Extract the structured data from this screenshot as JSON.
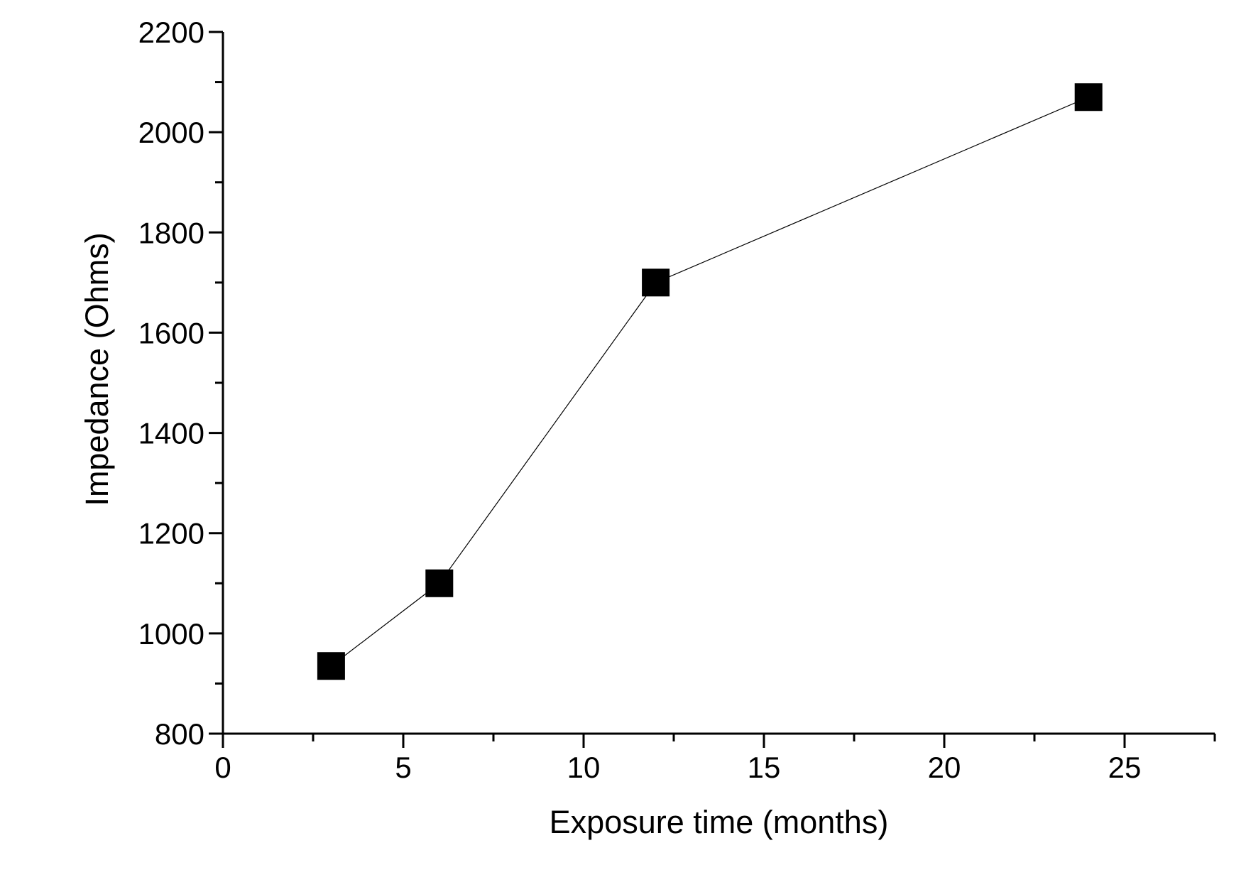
{
  "page": {
    "background": "#ffffff",
    "foreground": "#000000"
  },
  "chart_data": {
    "type": "line",
    "title": "",
    "xlabel": "Exposure time (months)",
    "ylabel": "Impedance (Ohms)",
    "series": [
      {
        "name": "Impedance",
        "x": [
          3,
          6,
          12,
          24
        ],
        "y": [
          935,
          1100,
          1700,
          2070
        ],
        "marker": "filled-square",
        "marker_size": 39,
        "line_width": 1.2,
        "color": "#000000"
      }
    ],
    "xlim": [
      0,
      27.5
    ],
    "ylim": [
      800,
      2200
    ],
    "x_major_ticks": [
      0,
      5,
      10,
      15,
      20,
      25
    ],
    "x_minor_ticks": [
      2.5,
      7.5,
      12.5,
      17.5,
      22.5,
      27.5
    ],
    "y_major_ticks": [
      800,
      1000,
      1200,
      1400,
      1600,
      1800,
      2000,
      2200
    ],
    "y_minor_ticks": [
      900,
      1100,
      1300,
      1500,
      1700,
      1900,
      2100
    ],
    "grid": false,
    "legend": false,
    "frame": "left-bottom-only",
    "tick_direction": "out",
    "axis_color": "#000000",
    "background": "#ffffff"
  }
}
